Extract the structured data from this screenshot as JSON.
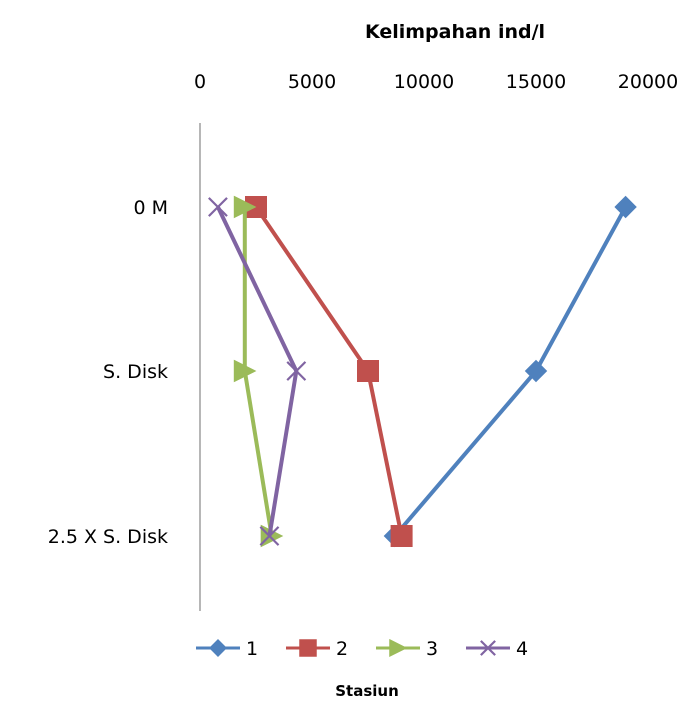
{
  "chart_data": {
    "type": "line",
    "title": "",
    "x_axis_title": "Kelimpahan ind/l",
    "x_axis_position": "top",
    "xlim": [
      0,
      20000
    ],
    "x_ticks": [
      0,
      5000,
      10000,
      15000,
      20000
    ],
    "x_tick_labels": [
      "0",
      "5000",
      "10000",
      "15000",
      "20000"
    ],
    "categories": [
      "0 M",
      "S. Disk",
      "2.5 X S. Disk"
    ],
    "category_axis": "y",
    "legend_title": "Stasiun",
    "legend_position": "bottom",
    "grid": false,
    "series": [
      {
        "name": "1",
        "color": "#4F81BD",
        "marker": "diamond",
        "values": [
          19000,
          15000,
          8700
        ]
      },
      {
        "name": "2",
        "color": "#C0504D",
        "marker": "square",
        "values": [
          2500,
          7500,
          9000
        ]
      },
      {
        "name": "3",
        "color": "#9BBB59",
        "marker": "triangle",
        "values": [
          2000,
          2000,
          3200
        ]
      },
      {
        "name": "4",
        "color": "#8064A2",
        "marker": "x",
        "values": [
          800,
          4300,
          3100
        ]
      }
    ]
  }
}
